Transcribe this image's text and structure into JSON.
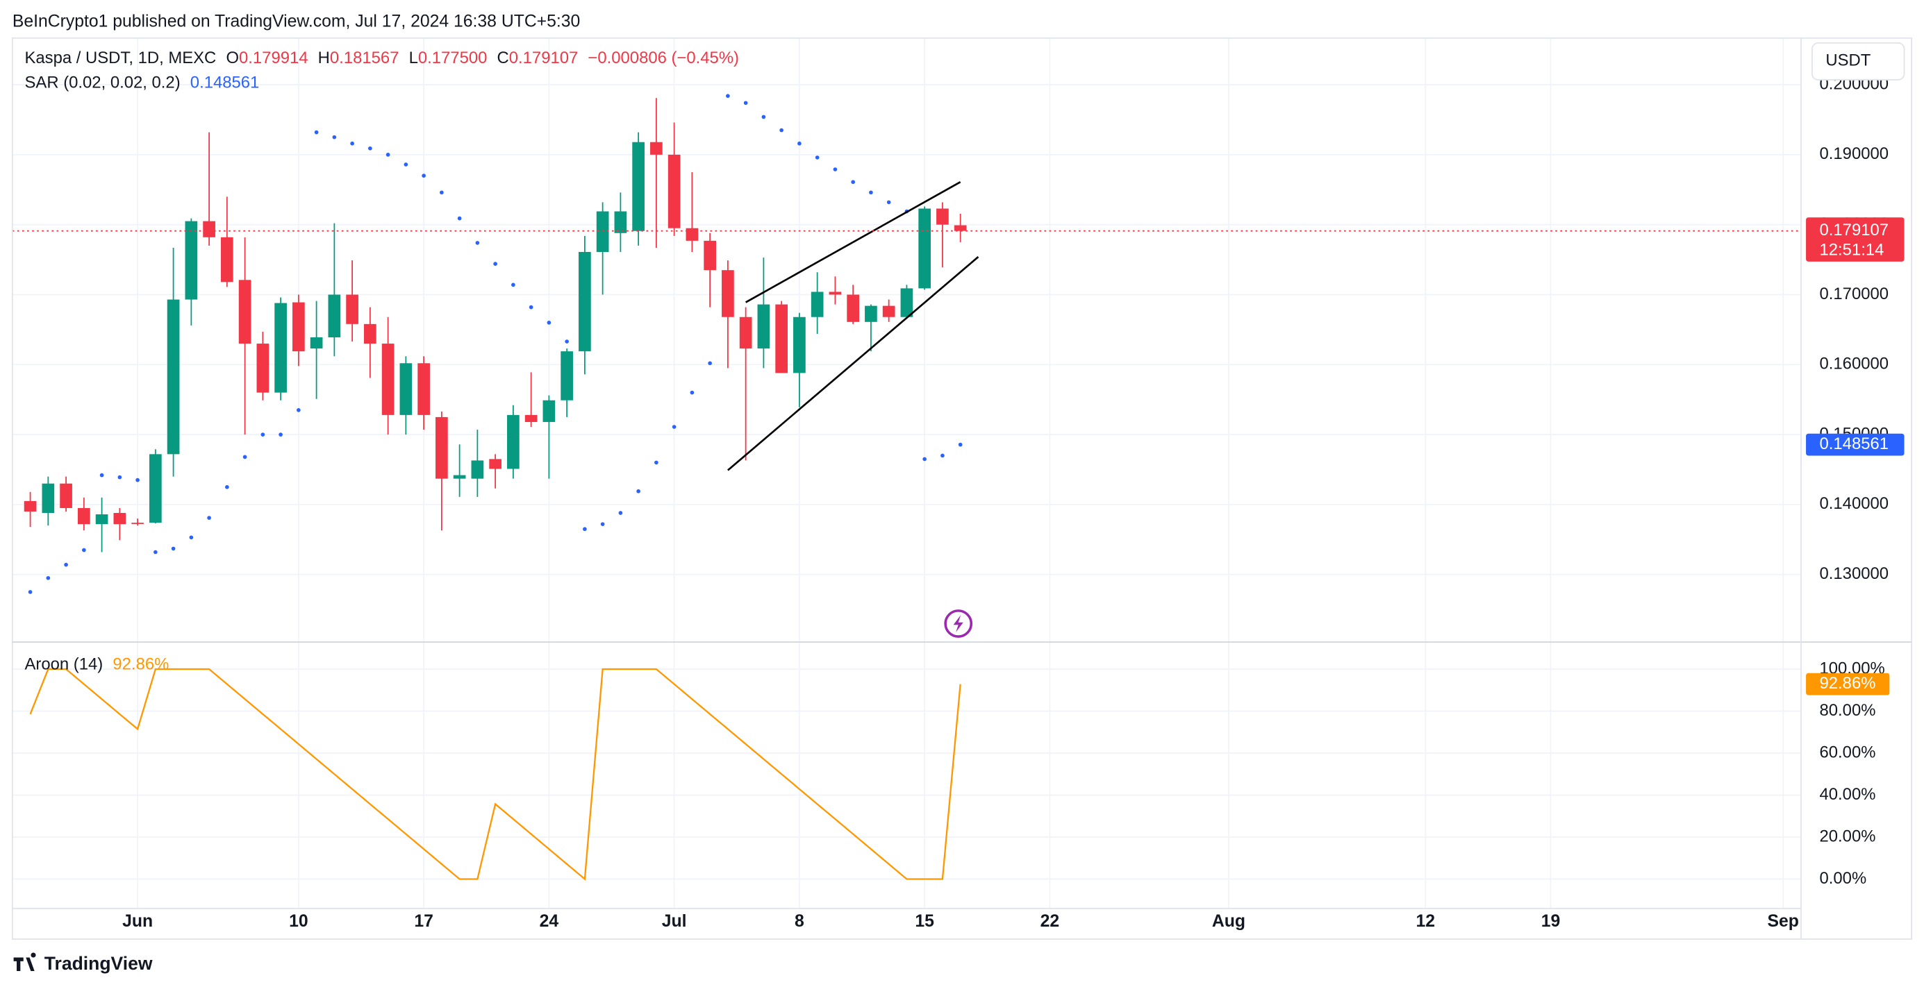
{
  "header": {
    "publisher": "BeInCrypto1 published on TradingView.com, Jul 17, 2024 16:38 UTC+5:30",
    "logo": "TradingView",
    "currency_button": "USDT"
  },
  "chart_data": [
    {
      "type": "candlestick",
      "title": "Kaspa / USDT, 1D, MEXC",
      "legend": [
        {
          "key": "O",
          "value": "0.179914"
        },
        {
          "key": "H",
          "value": "0.181567"
        },
        {
          "key": "L",
          "value": "0.177500"
        },
        {
          "key": "C",
          "value": "0.179107"
        }
      ],
      "change": "−0.000806 (−0.45%)",
      "up_color": "#089981",
      "down_color": "#f23645",
      "x": [
        "2024-05-26",
        "2024-05-27",
        "2024-05-28",
        "2024-05-29",
        "2024-05-30",
        "2024-05-31",
        "2024-06-01",
        "2024-06-02",
        "2024-06-03",
        "2024-06-04",
        "2024-06-05",
        "2024-06-06",
        "2024-06-07",
        "2024-06-08",
        "2024-06-09",
        "2024-06-10",
        "2024-06-11",
        "2024-06-12",
        "2024-06-13",
        "2024-06-14",
        "2024-06-15",
        "2024-06-16",
        "2024-06-17",
        "2024-06-18",
        "2024-06-19",
        "2024-06-20",
        "2024-06-21",
        "2024-06-22",
        "2024-06-23",
        "2024-06-24",
        "2024-06-25",
        "2024-06-26",
        "2024-06-27",
        "2024-06-28",
        "2024-06-29",
        "2024-06-30",
        "2024-07-01",
        "2024-07-02",
        "2024-07-03",
        "2024-07-04",
        "2024-07-05",
        "2024-07-06",
        "2024-07-07",
        "2024-07-08",
        "2024-07-09",
        "2024-07-10",
        "2024-07-11",
        "2024-07-12",
        "2024-07-13",
        "2024-07-14",
        "2024-07-15",
        "2024-07-16",
        "2024-07-17"
      ],
      "open": [
        0.1405,
        0.1388,
        0.143,
        0.1395,
        0.1372,
        0.1388,
        0.1374,
        0.1374,
        0.1472,
        0.1693,
        0.1805,
        0.1782,
        0.1721,
        0.163,
        0.156,
        0.1689,
        0.1623,
        0.1639,
        0.17,
        0.1658,
        0.163,
        0.1528,
        0.1602,
        0.1525,
        0.1437,
        0.1437,
        0.1465,
        0.1451,
        0.1528,
        0.1518,
        0.1549,
        0.1619,
        0.1761,
        0.1788,
        0.1791,
        0.1918,
        0.19,
        0.1795,
        0.1777,
        0.1735,
        0.1668,
        0.1623,
        0.1686,
        0.1588,
        0.1668,
        0.1704,
        0.17,
        0.1661,
        0.1684,
        0.1668,
        0.1709,
        0.1823,
        0.179914
      ],
      "high": [
        0.1418,
        0.144,
        0.144,
        0.141,
        0.141,
        0.1395,
        0.138,
        0.1479,
        0.1767,
        0.1809,
        0.1932,
        0.184,
        0.1782,
        0.1647,
        0.1696,
        0.17,
        0.1691,
        0.1802,
        0.1749,
        0.1682,
        0.1668,
        0.1612,
        0.1612,
        0.1533,
        0.1486,
        0.1507,
        0.1472,
        0.1542,
        0.1589,
        0.1556,
        0.1623,
        0.1784,
        0.1832,
        0.1846,
        0.1932,
        0.1981,
        0.1946,
        0.1875,
        0.1788,
        0.1749,
        0.1682,
        0.1753,
        0.1691,
        0.1674,
        0.1732,
        0.1726,
        0.1714,
        0.1686,
        0.1693,
        0.1714,
        0.1826,
        0.1832,
        0.181567
      ],
      "low": [
        0.1368,
        0.137,
        0.139,
        0.1363,
        0.1332,
        0.1349,
        0.137,
        0.1373,
        0.144,
        0.1656,
        0.177,
        0.1711,
        0.15,
        0.1549,
        0.1549,
        0.1598,
        0.1551,
        0.1612,
        0.1633,
        0.1581,
        0.15,
        0.15,
        0.1507,
        0.1363,
        0.1411,
        0.1411,
        0.1423,
        0.1437,
        0.1511,
        0.1437,
        0.1525,
        0.1586,
        0.17,
        0.1761,
        0.177,
        0.1767,
        0.1784,
        0.1761,
        0.1682,
        0.1595,
        0.1463,
        0.1595,
        0.1588,
        0.1539,
        0.1644,
        0.1686,
        0.1658,
        0.1619,
        0.1661,
        0.1668,
        0.1707,
        0.1739,
        0.1775
      ],
      "close": [
        0.139,
        0.143,
        0.1395,
        0.1372,
        0.1386,
        0.1372,
        0.1373,
        0.1472,
        0.1693,
        0.1805,
        0.1782,
        0.1718,
        0.163,
        0.156,
        0.1688,
        0.1619,
        0.1639,
        0.17,
        0.1658,
        0.163,
        0.1528,
        0.1602,
        0.1528,
        0.1437,
        0.1442,
        0.1463,
        0.1451,
        0.1528,
        0.1518,
        0.1549,
        0.1619,
        0.1761,
        0.1819,
        0.1819,
        0.1918,
        0.19,
        0.1795,
        0.1777,
        0.1735,
        0.1668,
        0.1623,
        0.1686,
        0.1588,
        0.1668,
        0.1704,
        0.17,
        0.1661,
        0.1684,
        0.1668,
        0.1709,
        0.1823,
        0.18,
        0.179107
      ],
      "series": [
        {
          "name": "SAR (0.02, 0.02, 0.2)",
          "color": "#2962ff",
          "last_label": "0.148561",
          "values": [
            0.1275,
            0.1295,
            0.1314,
            0.1335,
            0.1442,
            0.1439,
            0.1435,
            0.1332,
            0.1337,
            0.1353,
            0.1381,
            0.1425,
            0.1468,
            0.15,
            0.15,
            0.1535,
            0.1932,
            0.1925,
            0.1916,
            0.1909,
            0.19,
            0.1886,
            0.187,
            0.1846,
            0.1809,
            0.1774,
            0.1744,
            0.1714,
            0.1682,
            0.166,
            0.1633,
            0.1365,
            0.1372,
            0.1388,
            0.1419,
            0.146,
            0.1511,
            0.156,
            0.1602,
            0.1984,
            0.1974,
            0.1954,
            0.1935,
            0.1916,
            0.1896,
            0.1879,
            0.1861,
            0.1846,
            0.1832,
            0.1819,
            0.1465,
            0.147,
            0.148561
          ]
        }
      ],
      "last_price": {
        "value": 0.179107,
        "label": "0.179107",
        "countdown": "12:51:14"
      },
      "trendlines": [
        {
          "x": [
            "2024-07-05",
            "2024-07-17"
          ],
          "y": [
            0.1689,
            0.1861
          ],
          "color": "#000000"
        },
        {
          "x": [
            "2024-07-04",
            "2024-07-18"
          ],
          "y": [
            0.1449,
            0.1754
          ],
          "color": "#000000"
        }
      ],
      "xlim": [
        "2024-05-25",
        "2024-09-02"
      ],
      "xticks": [
        {
          "value": "2024-06-01",
          "label": "Jun"
        },
        {
          "value": "2024-06-10",
          "label": "10"
        },
        {
          "value": "2024-06-17",
          "label": "17"
        },
        {
          "value": "2024-06-24",
          "label": "24"
        },
        {
          "value": "2024-07-01",
          "label": "Jul"
        },
        {
          "value": "2024-07-08",
          "label": "8"
        },
        {
          "value": "2024-07-15",
          "label": "15"
        },
        {
          "value": "2024-07-22",
          "label": "22"
        },
        {
          "value": "2024-08-01",
          "label": "Aug"
        },
        {
          "value": "2024-08-12",
          "label": "12"
        },
        {
          "value": "2024-08-19",
          "label": "19"
        },
        {
          "value": "2024-09-01",
          "label": "Sep"
        }
      ],
      "ylim": [
        0.12035,
        0.20667
      ],
      "yticks": [
        {
          "value": 0.13,
          "label": "0.130000"
        },
        {
          "value": 0.14,
          "label": "0.140000"
        },
        {
          "value": 0.15,
          "label": "0.150000"
        },
        {
          "value": 0.16,
          "label": "0.160000"
        },
        {
          "value": 0.17,
          "label": "0.170000"
        },
        {
          "value": 0.18,
          "label": "0.180000"
        },
        {
          "value": 0.19,
          "label": "0.190000"
        },
        {
          "value": 0.2,
          "label": "0.200000"
        }
      ],
      "grid": true
    },
    {
      "type": "line",
      "x": [
        "2024-05-26",
        "2024-05-27",
        "2024-05-28",
        "2024-05-29",
        "2024-05-30",
        "2024-05-31",
        "2024-06-01",
        "2024-06-02",
        "2024-06-03",
        "2024-06-04",
        "2024-06-05",
        "2024-06-06",
        "2024-06-07",
        "2024-06-08",
        "2024-06-09",
        "2024-06-10",
        "2024-06-11",
        "2024-06-12",
        "2024-06-13",
        "2024-06-14",
        "2024-06-15",
        "2024-06-16",
        "2024-06-17",
        "2024-06-18",
        "2024-06-19",
        "2024-06-20",
        "2024-06-21",
        "2024-06-22",
        "2024-06-23",
        "2024-06-24",
        "2024-06-25",
        "2024-06-26",
        "2024-06-27",
        "2024-06-28",
        "2024-06-29",
        "2024-06-30",
        "2024-07-01",
        "2024-07-02",
        "2024-07-03",
        "2024-07-04",
        "2024-07-05",
        "2024-07-06",
        "2024-07-07",
        "2024-07-08",
        "2024-07-09",
        "2024-07-10",
        "2024-07-11",
        "2024-07-12",
        "2024-07-13",
        "2024-07-14",
        "2024-07-15",
        "2024-07-16",
        "2024-07-17"
      ],
      "series": [
        {
          "name": "Aroon (14)",
          "color": "#ff9800",
          "last_label": "92.86%",
          "values": [
            78.57,
            100,
            100,
            92.86,
            85.71,
            78.57,
            71.43,
            100,
            100,
            100,
            100,
            92.86,
            85.71,
            78.57,
            71.43,
            64.29,
            57.14,
            50,
            42.86,
            35.71,
            28.57,
            21.43,
            14.29,
            7.14,
            0,
            0,
            35.71,
            28.57,
            21.43,
            14.29,
            7.14,
            0,
            100,
            100,
            100,
            100,
            92.86,
            85.71,
            78.57,
            71.43,
            64.29,
            57.14,
            50,
            42.86,
            35.71,
            28.57,
            21.43,
            14.29,
            7.14,
            0,
            0,
            0,
            92.86
          ]
        }
      ],
      "xlim": [
        "2024-05-25",
        "2024-09-02"
      ],
      "xticks": [
        {
          "value": "2024-06-01",
          "label": "Jun"
        },
        {
          "value": "2024-06-10",
          "label": "10"
        },
        {
          "value": "2024-06-17",
          "label": "17"
        },
        {
          "value": "2024-06-24",
          "label": "24"
        },
        {
          "value": "2024-07-01",
          "label": "Jul"
        },
        {
          "value": "2024-07-08",
          "label": "8"
        },
        {
          "value": "2024-07-15",
          "label": "15"
        },
        {
          "value": "2024-07-22",
          "label": "22"
        },
        {
          "value": "2024-08-01",
          "label": "Aug"
        },
        {
          "value": "2024-08-12",
          "label": "12"
        },
        {
          "value": "2024-08-19",
          "label": "19"
        },
        {
          "value": "2024-09-01",
          "label": "Sep"
        }
      ],
      "ylim": [
        -14,
        112.9
      ],
      "yticks": [
        {
          "value": 0,
          "label": "0.00%"
        },
        {
          "value": 20,
          "label": "20.00%"
        },
        {
          "value": 40,
          "label": "40.00%"
        },
        {
          "value": 60,
          "label": "60.00%"
        },
        {
          "value": 80,
          "label": "80.00%"
        },
        {
          "value": 100,
          "label": "100.00%"
        }
      ],
      "grid": true
    }
  ]
}
